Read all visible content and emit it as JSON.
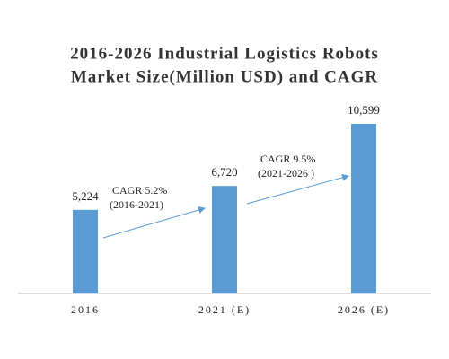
{
  "chart_data": {
    "type": "bar",
    "title": [
      "2016-2026 Industrial Logistics Robots",
      "Market Size(Million USD) and CAGR"
    ],
    "categories": [
      "2016",
      "2021 (E)",
      "2026 (E)"
    ],
    "values": [
      5224,
      6720,
      10599
    ],
    "value_labels": [
      "5,224",
      "6,720",
      "10,599"
    ],
    "color": "#5b9bd5",
    "annotations": [
      {
        "label": "CAGR 5.2%",
        "period": "(2016-2021)"
      },
      {
        "label": "CAGR 9.5%",
        "period": "(2021-2026 )"
      }
    ]
  }
}
